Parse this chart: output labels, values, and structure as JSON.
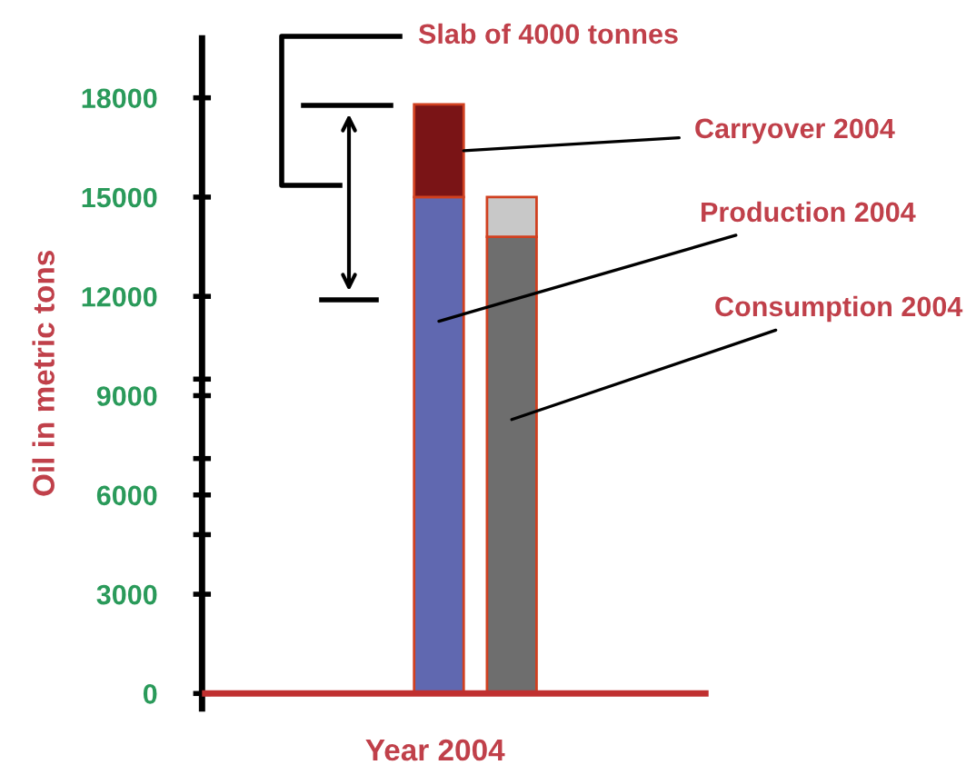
{
  "chart_data": {
    "type": "bar",
    "xlabel": "Year 2004",
    "ylabel": "Oil in metric tons",
    "categories": [
      null,
      null
    ],
    "series": [
      {
        "name": "Production 2004",
        "color": "#6068b0",
        "values": [
          15000,
          null
        ]
      },
      {
        "name": "Carryover 2004",
        "color": "#7a1416",
        "values": [
          2800,
          null
        ]
      },
      {
        "name": "Consumption 2004",
        "color": "#6e6e6e",
        "values": [
          null,
          13800
        ]
      },
      {
        "color": "#c8c8c8",
        "values": [
          null,
          1200
        ]
      }
    ],
    "stacked": true,
    "ref_lines": [
      {
        "axis": "y",
        "value": 0,
        "color": "#c03030"
      }
    ],
    "annotations": [
      "Slab of 4000 tonnes"
    ],
    "ylim": [
      -450,
      19800
    ],
    "yticks": [
      0,
      3000,
      {
        "value": 4800,
        "label": null
      },
      6000,
      {
        "value": 7100,
        "label": null
      },
      9000,
      {
        "value": 9500,
        "label": null
      },
      12000,
      15000,
      18000
    ],
    "grid": false,
    "legend": false
  }
}
